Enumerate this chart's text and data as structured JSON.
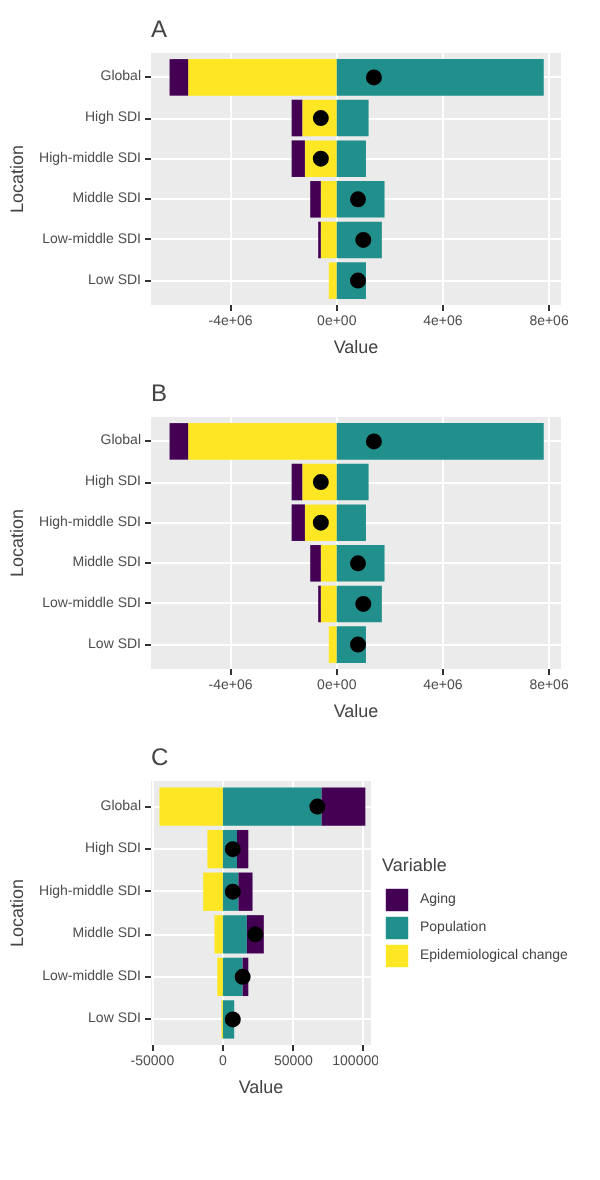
{
  "chart_data": [
    {
      "type": "bar",
      "title": "A",
      "xlabel": "Value",
      "ylabel": "Location",
      "orientation": "horizontal",
      "stacked": true,
      "grid": true,
      "categories": [
        "Global",
        "High SDI",
        "High-middle SDI",
        "Middle SDI",
        "Low-middle SDI",
        "Low SDI"
      ],
      "xlim": [
        -7000000,
        8450000
      ],
      "xticks": [
        {
          "value": -4000000,
          "label": "-4e+06"
        },
        {
          "value": 0,
          "label": "0e+00"
        },
        {
          "value": 4000000,
          "label": "4e+06"
        },
        {
          "value": 8000000,
          "label": "8e+06"
        }
      ],
      "series": [
        {
          "color": "#fde725",
          "values": [
            -5600000,
            -1300000,
            -1200000,
            -600000,
            -600000,
            -300000
          ]
        },
        {
          "color": "#21908c",
          "values": [
            7800000,
            1200000,
            1100000,
            1800000,
            1700000,
            1100000
          ]
        },
        {
          "color": "#440154",
          "values": [
            -700000,
            -400000,
            -500000,
            -400000,
            -100000,
            0
          ]
        },
        {
          "type": "scatter",
          "color": "#000000",
          "marker": "circle",
          "values": [
            1400000,
            -600000,
            -600000,
            800000,
            1000000,
            800000
          ]
        }
      ]
    },
    {
      "type": "bar",
      "title": "B",
      "xlabel": "Value",
      "ylabel": "Location",
      "orientation": "horizontal",
      "stacked": true,
      "grid": true,
      "categories": [
        "Global",
        "High SDI",
        "High-middle SDI",
        "Middle SDI",
        "Low-middle SDI",
        "Low SDI"
      ],
      "xlim": [
        -7000000,
        8450000
      ],
      "xticks": [
        {
          "value": -4000000,
          "label": "-4e+06"
        },
        {
          "value": 0,
          "label": "0e+00"
        },
        {
          "value": 4000000,
          "label": "4e+06"
        },
        {
          "value": 8000000,
          "label": "8e+06"
        }
      ],
      "series": [
        {
          "color": "#fde725",
          "values": [
            -5600000,
            -1300000,
            -1200000,
            -600000,
            -600000,
            -300000
          ]
        },
        {
          "color": "#21908c",
          "values": [
            7800000,
            1200000,
            1100000,
            1800000,
            1700000,
            1100000
          ]
        },
        {
          "color": "#440154",
          "values": [
            -700000,
            -400000,
            -500000,
            -400000,
            -100000,
            0
          ]
        },
        {
          "type": "scatter",
          "color": "#000000",
          "marker": "circle",
          "values": [
            1400000,
            -600000,
            -600000,
            800000,
            1000000,
            800000
          ]
        }
      ]
    },
    {
      "type": "bar",
      "title": "C",
      "xlabel": "Value",
      "ylabel": "Location",
      "orientation": "horizontal",
      "stacked": true,
      "grid": true,
      "legend": "right",
      "legend_title": "Variable",
      "categories": [
        "Global",
        "High SDI",
        "High-middle SDI",
        "Middle SDI",
        "Low-middle SDI",
        "Low SDI"
      ],
      "xlim": [
        -51000,
        105000
      ],
      "xticks": [
        -50000,
        0,
        50000,
        100000
      ],
      "series": [
        {
          "name": "Epidemiological change",
          "color": "#fde725",
          "values": [
            -45000,
            -11000,
            -14000,
            -6000,
            -4000,
            -1000
          ]
        },
        {
          "name": "Population",
          "color": "#21908c",
          "values": [
            70000,
            10000,
            11000,
            17000,
            14000,
            8000
          ]
        },
        {
          "name": "Aging",
          "color": "#440154",
          "values": [
            31000,
            8000,
            10000,
            12000,
            4000,
            0
          ]
        },
        {
          "type": "scatter",
          "color": "#000000",
          "marker": "circle",
          "values": [
            67000,
            7000,
            7000,
            23000,
            14000,
            7000
          ]
        }
      ]
    }
  ]
}
